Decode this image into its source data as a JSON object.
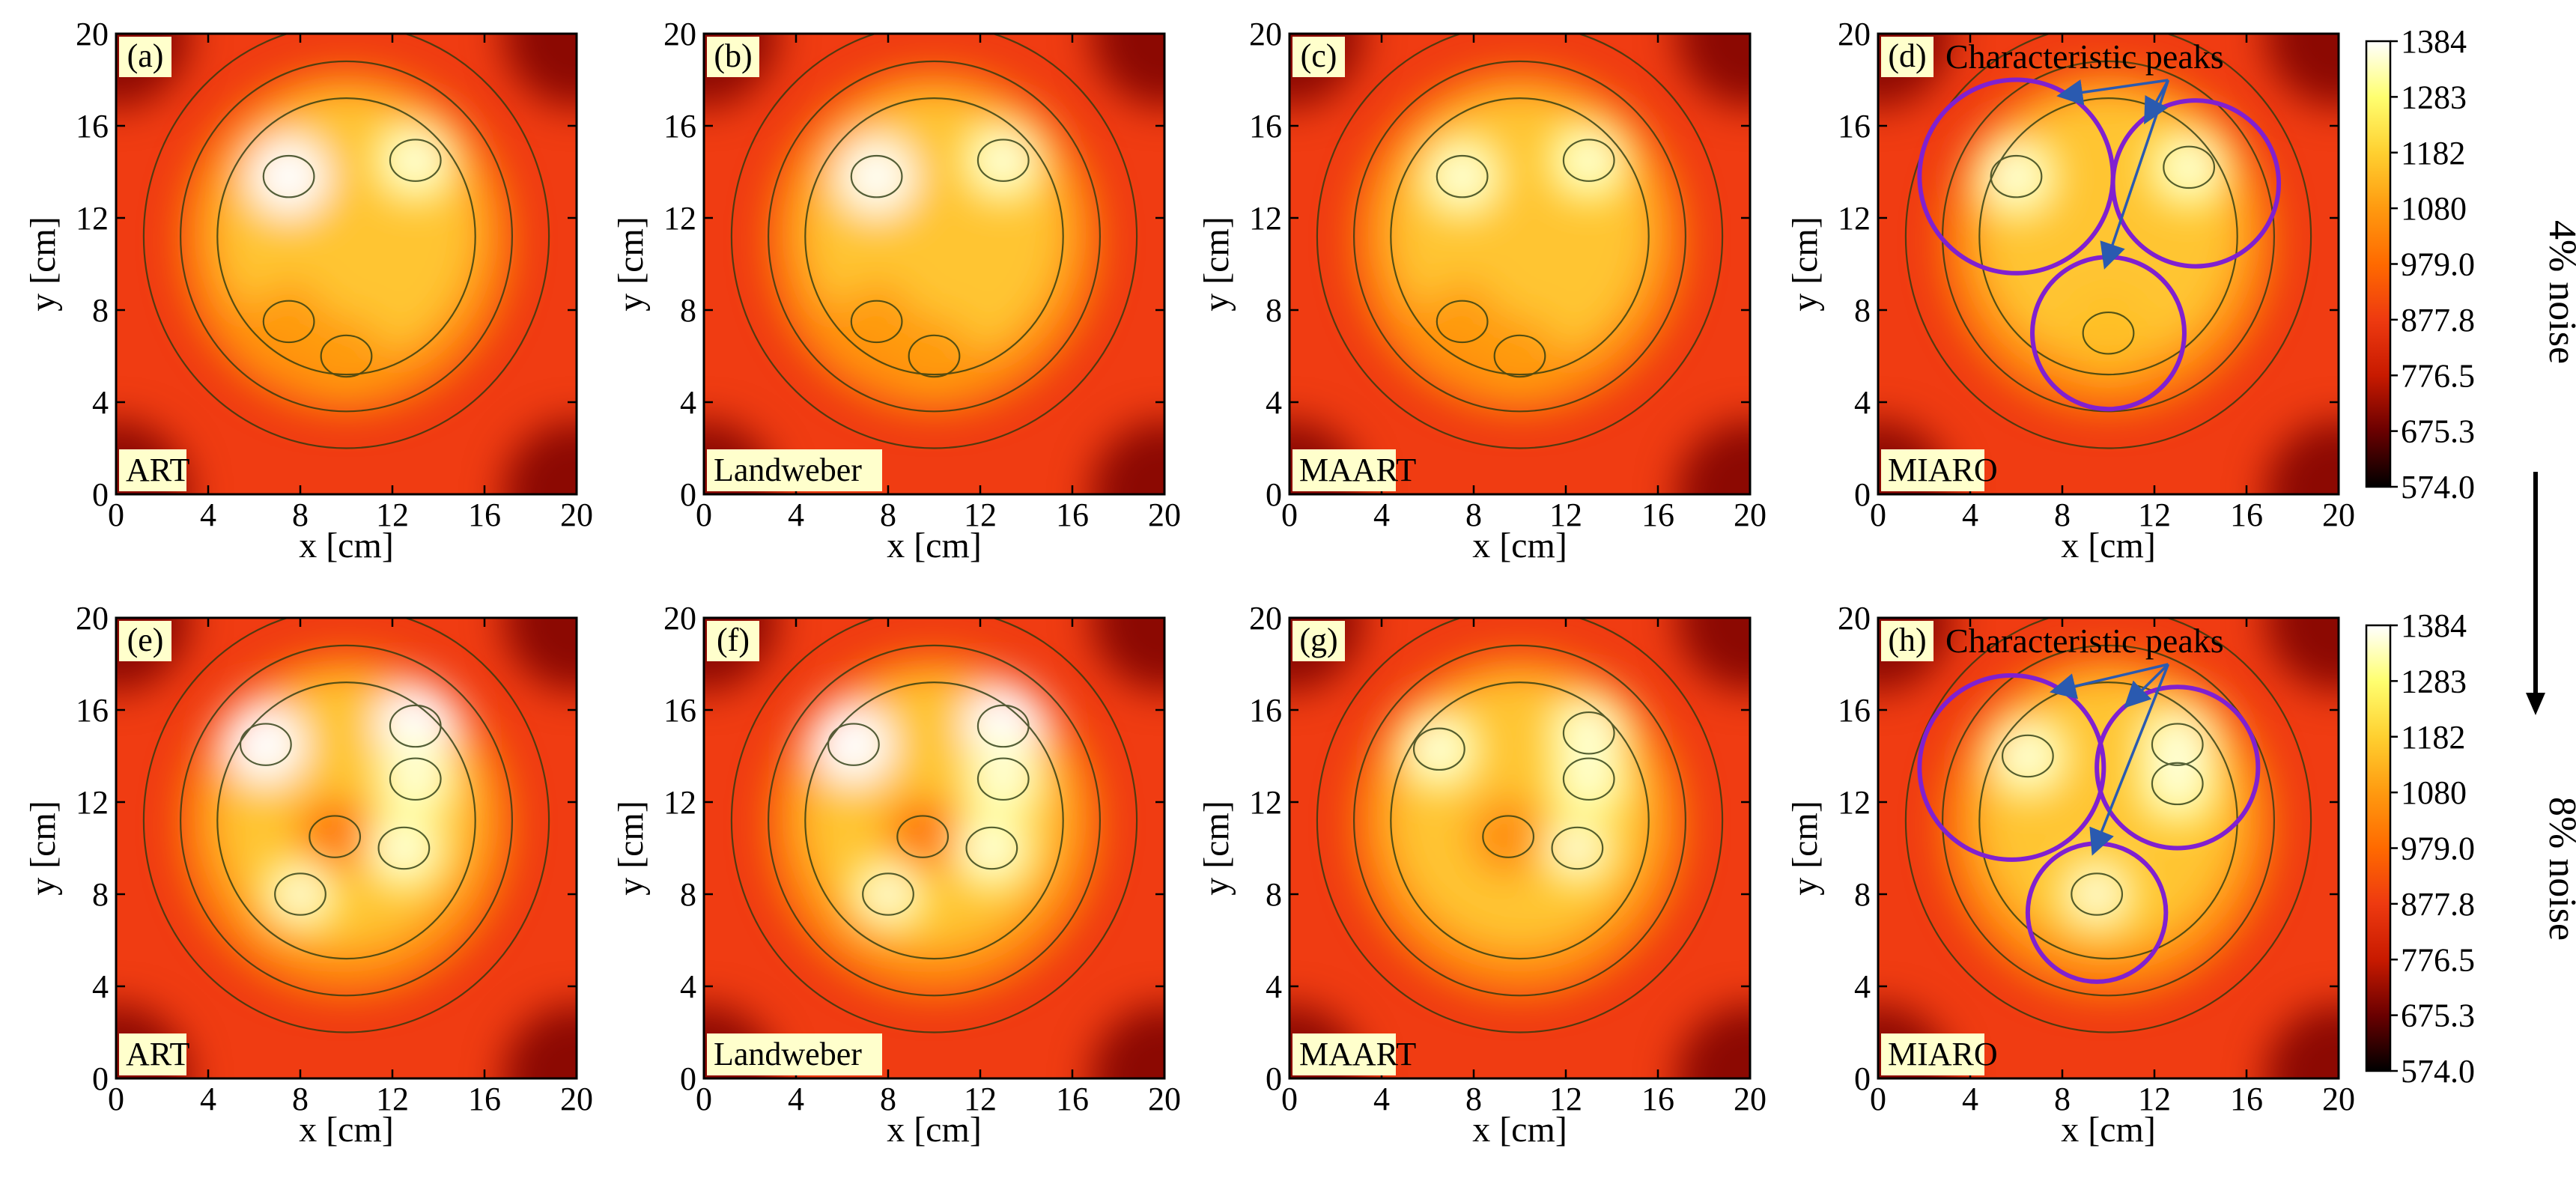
{
  "chart_data": [
    {
      "type": "heatmap",
      "panel": "(a)",
      "method": "ART",
      "noise": "4% noise",
      "xlabel": "x [cm]",
      "ylabel": "y [cm]",
      "xlim": [
        0,
        20
      ],
      "ylim": [
        0,
        20
      ],
      "xticks": [
        "0",
        "4",
        "8",
        "12",
        "16",
        "20"
      ],
      "yticks": [
        "0",
        "4",
        "8",
        "12",
        "16",
        "20"
      ],
      "contours": true,
      "annotation": "",
      "peaks": [
        {
          "x": 7.5,
          "y": 13.8,
          "value": 1384
        },
        {
          "x": 13,
          "y": 14.5,
          "value": 1300
        },
        {
          "x": 7.5,
          "y": 7.5,
          "value": 1080
        },
        {
          "x": 10,
          "y": 6,
          "value": 1080
        }
      ]
    },
    {
      "type": "heatmap",
      "panel": "(b)",
      "method": "Landweber",
      "noise": "4% noise",
      "xlabel": "x [cm]",
      "ylabel": "y [cm]",
      "xlim": [
        0,
        20
      ],
      "ylim": [
        0,
        20
      ],
      "xticks": [
        "0",
        "4",
        "8",
        "12",
        "16",
        "20"
      ],
      "yticks": [
        "0",
        "4",
        "8",
        "12",
        "16",
        "20"
      ],
      "contours": true,
      "annotation": "",
      "peaks": [
        {
          "x": 7.5,
          "y": 13.8,
          "value": 1370
        },
        {
          "x": 13,
          "y": 14.5,
          "value": 1300
        },
        {
          "x": 7.5,
          "y": 7.5,
          "value": 1080
        },
        {
          "x": 10,
          "y": 6,
          "value": 1080
        }
      ]
    },
    {
      "type": "heatmap",
      "panel": "(c)",
      "method": "MAART",
      "noise": "4% noise",
      "xlabel": "x [cm]",
      "ylabel": "y [cm]",
      "xlim": [
        0,
        20
      ],
      "ylim": [
        0,
        20
      ],
      "xticks": [
        "0",
        "4",
        "8",
        "12",
        "16",
        "20"
      ],
      "yticks": [
        "0",
        "4",
        "8",
        "12",
        "16",
        "20"
      ],
      "contours": true,
      "annotation": "",
      "peaks": [
        {
          "x": 7.5,
          "y": 13.8,
          "value": 1300
        },
        {
          "x": 13,
          "y": 14.5,
          "value": 1283
        },
        {
          "x": 7.5,
          "y": 7.5,
          "value": 1080
        },
        {
          "x": 10,
          "y": 6,
          "value": 1080
        }
      ]
    },
    {
      "type": "heatmap",
      "panel": "(d)",
      "method": "MIARO",
      "noise": "4% noise",
      "xlabel": "x [cm]",
      "ylabel": "y [cm]",
      "xlim": [
        0,
        20
      ],
      "ylim": [
        0,
        20
      ],
      "xticks": [
        "0",
        "4",
        "8",
        "12",
        "16",
        "20"
      ],
      "yticks": [
        "0",
        "4",
        "8",
        "12",
        "16",
        "20"
      ],
      "contours": true,
      "annotation": "Characteristic peaks",
      "circles": [
        {
          "cx": 6,
          "cy": 13.8,
          "r": 4.2
        },
        {
          "cx": 13.8,
          "cy": 13.5,
          "r": 3.6
        },
        {
          "cx": 10,
          "cy": 7,
          "r": 3.3
        }
      ],
      "peaks": [
        {
          "x": 6,
          "y": 13.8,
          "value": 1300
        },
        {
          "x": 13.5,
          "y": 14.2,
          "value": 1283
        },
        {
          "x": 10,
          "y": 7,
          "value": 1150
        }
      ]
    },
    {
      "type": "heatmap",
      "panel": "(e)",
      "method": "ART",
      "noise": "8% noise",
      "xlabel": "x [cm]",
      "ylabel": "y [cm]",
      "xlim": [
        0,
        20
      ],
      "ylim": [
        0,
        20
      ],
      "xticks": [
        "0",
        "4",
        "8",
        "12",
        "16",
        "20"
      ],
      "yticks": [
        "0",
        "4",
        "8",
        "12",
        "16",
        "20"
      ],
      "contours": true,
      "annotation": "",
      "peaks": [
        {
          "x": 6.5,
          "y": 14.5,
          "value": 1384
        },
        {
          "x": 13,
          "y": 15.3,
          "value": 1384
        },
        {
          "x": 13,
          "y": 13,
          "value": 1300
        },
        {
          "x": 9.5,
          "y": 10.5,
          "value": 1000
        },
        {
          "x": 12.5,
          "y": 10,
          "value": 1300
        },
        {
          "x": 8,
          "y": 8,
          "value": 1250
        }
      ]
    },
    {
      "type": "heatmap",
      "panel": "(f)",
      "method": "Landweber",
      "noise": "8% noise",
      "xlabel": "x [cm]",
      "ylabel": "y [cm]",
      "xlim": [
        0,
        20
      ],
      "ylim": [
        0,
        20
      ],
      "xticks": [
        "0",
        "4",
        "8",
        "12",
        "16",
        "20"
      ],
      "yticks": [
        "0",
        "4",
        "8",
        "12",
        "16",
        "20"
      ],
      "contours": true,
      "annotation": "",
      "peaks": [
        {
          "x": 6.5,
          "y": 14.5,
          "value": 1384
        },
        {
          "x": 13,
          "y": 15.3,
          "value": 1384
        },
        {
          "x": 13,
          "y": 13,
          "value": 1300
        },
        {
          "x": 9.5,
          "y": 10.5,
          "value": 1000
        },
        {
          "x": 12.5,
          "y": 10,
          "value": 1300
        },
        {
          "x": 8,
          "y": 8,
          "value": 1250
        }
      ]
    },
    {
      "type": "heatmap",
      "panel": "(g)",
      "method": "MAART",
      "noise": "8% noise",
      "xlabel": "x [cm]",
      "ylabel": "y [cm]",
      "xlim": [
        0,
        20
      ],
      "ylim": [
        0,
        20
      ],
      "xticks": [
        "0",
        "4",
        "8",
        "12",
        "16",
        "20"
      ],
      "yticks": [
        "0",
        "4",
        "8",
        "12",
        "16",
        "20"
      ],
      "contours": true,
      "annotation": "",
      "peaks": [
        {
          "x": 6.5,
          "y": 14.3,
          "value": 1300
        },
        {
          "x": 13,
          "y": 15,
          "value": 1300
        },
        {
          "x": 13,
          "y": 13,
          "value": 1283
        },
        {
          "x": 9.5,
          "y": 10.5,
          "value": 1050
        },
        {
          "x": 12.5,
          "y": 10,
          "value": 1250
        }
      ]
    },
    {
      "type": "heatmap",
      "panel": "(h)",
      "method": "MIARO",
      "noise": "8% noise",
      "xlabel": "x [cm]",
      "ylabel": "y [cm]",
      "xlim": [
        0,
        20
      ],
      "ylim": [
        0,
        20
      ],
      "xticks": [
        "0",
        "4",
        "8",
        "12",
        "16",
        "20"
      ],
      "yticks": [
        "0",
        "4",
        "8",
        "12",
        "16",
        "20"
      ],
      "contours": true,
      "annotation": "Characteristic peaks",
      "circles": [
        {
          "cx": 5.8,
          "cy": 13.5,
          "r": 4.0
        },
        {
          "cx": 13,
          "cy": 13.5,
          "r": 3.5
        },
        {
          "cx": 9.5,
          "cy": 7.2,
          "r": 3.0
        }
      ],
      "peaks": [
        {
          "x": 6.5,
          "y": 14,
          "value": 1300
        },
        {
          "x": 13,
          "y": 14.5,
          "value": 1300
        },
        {
          "x": 13,
          "y": 12.8,
          "value": 1283
        },
        {
          "x": 9.5,
          "y": 8,
          "value": 1250
        }
      ]
    }
  ],
  "colorbar": {
    "ticks": [
      "1384",
      "1283",
      "1182",
      "1080",
      "979.0",
      "877.8",
      "776.5",
      "675.3",
      "574.0"
    ],
    "min": 574.0,
    "max": 1384,
    "colormap": [
      "#000000",
      "#6a0000",
      "#c81a00",
      "#ee3a10",
      "#ff6a00",
      "#ff9a10",
      "#ffd030",
      "#ffff70",
      "#ffffff"
    ]
  },
  "noise_labels": [
    "4% noise",
    "8% noise"
  ],
  "colors": {
    "circle": "#8020d0",
    "annotation": "#2a2aff",
    "contour": "#2a3a10",
    "label_bg": "#ffffcc"
  }
}
